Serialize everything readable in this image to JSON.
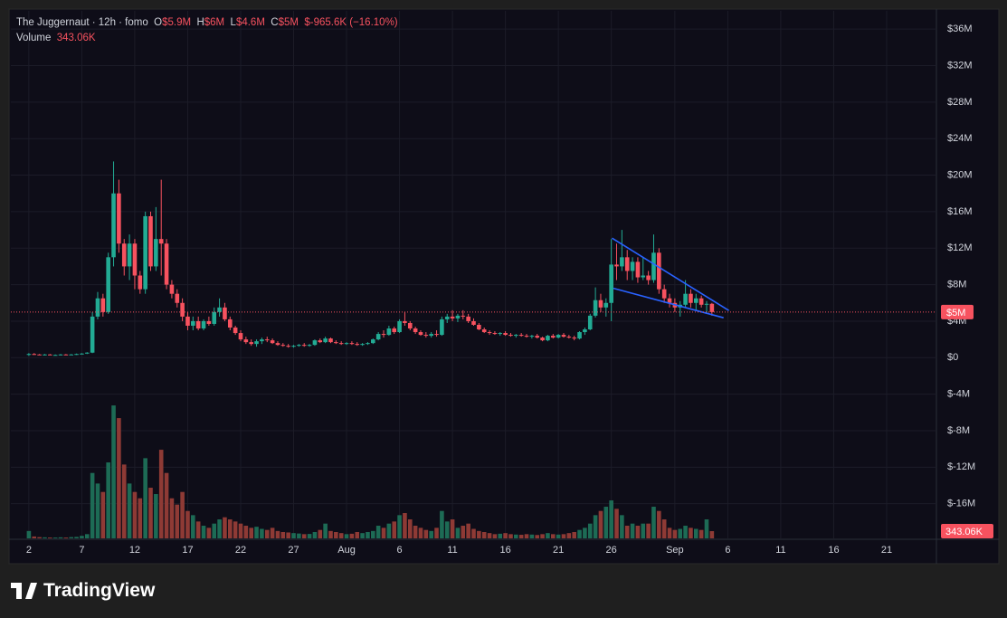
{
  "chart_data": {
    "type": "candlestick",
    "title": "The Juggernaut · 12h · fomo",
    "ohlc_legend": [
      {
        "label": "O",
        "value": "$5.9M"
      },
      {
        "label": "H",
        "value": "$6M"
      },
      {
        "label": "L",
        "value": "$4.6M"
      },
      {
        "label": "C",
        "value": "$5M"
      }
    ],
    "change": "$-965.6K (−16.10%)",
    "volume_title": "Volume",
    "volume_value": "343.06K",
    "last_price_label": "$5M",
    "brand": "TradingView",
    "up_color": "#22ab94",
    "down_color": "#f7525f",
    "volume_up_color": "#1d6b55",
    "volume_down_color": "#8e3a35",
    "x": [
      1,
      1.5,
      2,
      2.5,
      3,
      3.5,
      4,
      4.5,
      5,
      5.5,
      6,
      6.5,
      7,
      7.5,
      8,
      8.5,
      9,
      9.5,
      10,
      10.5,
      11,
      11.5,
      12,
      12.5,
      13,
      13.5,
      14,
      14.5,
      15,
      15.5,
      16,
      16.5,
      17,
      17.5,
      18,
      18.5,
      19,
      19.5,
      20,
      20.5,
      21,
      21.5,
      22,
      22.5,
      23,
      23.5,
      24,
      24.5,
      25,
      25.5,
      26,
      26.5,
      27,
      27.5,
      28,
      28.5,
      29,
      29.5,
      30,
      30.5,
      31,
      31.5,
      32,
      32.5,
      33,
      33.5,
      34,
      34.5,
      35,
      35.5,
      36,
      36.5,
      37,
      37.5,
      38,
      38.5,
      39,
      39.5,
      40,
      40.5,
      41,
      41.5,
      42,
      42.5,
      43,
      43.5,
      44,
      44.5,
      45,
      45.5,
      46,
      46.5,
      47,
      47.5,
      48,
      48.5,
      49,
      49.5,
      50,
      50.5,
      51,
      51.5,
      52,
      52.5,
      53,
      53.5,
      54,
      54.5,
      55,
      55.5,
      56,
      56.5,
      57,
      57.5,
      58,
      58.5,
      59,
      59.5,
      60,
      60.5,
      61,
      61.5,
      62,
      62.5,
      63,
      63.5,
      64,
      64.5,
      65,
      65.5
    ],
    "ohlc": [
      [
        0.3,
        0.5,
        0.2,
        0.4
      ],
      [
        0.4,
        0.5,
        0.3,
        0.35
      ],
      [
        0.35,
        0.4,
        0.3,
        0.3
      ],
      [
        0.3,
        0.4,
        0.25,
        0.35
      ],
      [
        0.35,
        0.4,
        0.3,
        0.3
      ],
      [
        0.3,
        0.35,
        0.25,
        0.3
      ],
      [
        0.3,
        0.4,
        0.25,
        0.35
      ],
      [
        0.35,
        0.4,
        0.3,
        0.3
      ],
      [
        0.3,
        0.4,
        0.3,
        0.35
      ],
      [
        0.35,
        0.45,
        0.3,
        0.4
      ],
      [
        0.4,
        0.5,
        0.35,
        0.45
      ],
      [
        0.45,
        0.6,
        0.4,
        0.55
      ],
      [
        0.55,
        5,
        0.5,
        4.5
      ],
      [
        4.5,
        7.2,
        4.2,
        6.5
      ],
      [
        6.5,
        7,
        4.5,
        5
      ],
      [
        5,
        11.5,
        4.8,
        11
      ],
      [
        11,
        21.5,
        10,
        18
      ],
      [
        18,
        19.5,
        11.5,
        12.5
      ],
      [
        12.5,
        13,
        9,
        10
      ],
      [
        10,
        13.5,
        8.5,
        12.5
      ],
      [
        12.5,
        13,
        7.5,
        9
      ],
      [
        9,
        9.5,
        7,
        7.5
      ],
      [
        7.5,
        16,
        7,
        15.5
      ],
      [
        15.5,
        16,
        9.5,
        10
      ],
      [
        10,
        16.5,
        9.5,
        13
      ],
      [
        13,
        19.5,
        9,
        12.5
      ],
      [
        12.5,
        13,
        7.5,
        8
      ],
      [
        8,
        8.5,
        6.5,
        7
      ],
      [
        7,
        7.5,
        5.5,
        6
      ],
      [
        6,
        6.5,
        4,
        4.5
      ],
      [
        4.5,
        5,
        3,
        3.5
      ],
      [
        3.5,
        4.5,
        3,
        4
      ],
      [
        4,
        4.5,
        3,
        3.2
      ],
      [
        3.2,
        4.2,
        3,
        4
      ],
      [
        4,
        4.5,
        3.5,
        3.7
      ],
      [
        3.7,
        5.5,
        3.5,
        5
      ],
      [
        5,
        6.5,
        4.5,
        5.5
      ],
      [
        5.5,
        6,
        4,
        4.2
      ],
      [
        4.2,
        4.5,
        3,
        3.3
      ],
      [
        3.3,
        3.5,
        2.5,
        2.7
      ],
      [
        2.7,
        3,
        1.8,
        2
      ],
      [
        2,
        2.3,
        1.5,
        1.7
      ],
      [
        1.7,
        2,
        1.3,
        1.5
      ],
      [
        1.5,
        2,
        1.2,
        1.8
      ],
      [
        1.8,
        2.2,
        1.5,
        2
      ],
      [
        2,
        2.3,
        1.7,
        1.9
      ],
      [
        1.9,
        2.1,
        1.5,
        1.6
      ],
      [
        1.6,
        1.8,
        1.3,
        1.4
      ],
      [
        1.4,
        1.6,
        1.2,
        1.3
      ],
      [
        1.3,
        1.5,
        1.1,
        1.2
      ],
      [
        1.2,
        1.4,
        1.1,
        1.3
      ],
      [
        1.3,
        1.5,
        1.2,
        1.4
      ],
      [
        1.4,
        1.6,
        1.2,
        1.3
      ],
      [
        1.3,
        1.5,
        1.2,
        1.4
      ],
      [
        1.4,
        2,
        1.3,
        1.9
      ],
      [
        1.9,
        2.1,
        1.6,
        1.7
      ],
      [
        1.7,
        2.3,
        1.6,
        2.1
      ],
      [
        2.1,
        2.2,
        1.6,
        1.7
      ],
      [
        1.7,
        1.9,
        1.5,
        1.6
      ],
      [
        1.6,
        1.8,
        1.4,
        1.5
      ],
      [
        1.5,
        1.7,
        1.4,
        1.6
      ],
      [
        1.6,
        1.8,
        1.4,
        1.5
      ],
      [
        1.5,
        1.7,
        1.3,
        1.4
      ],
      [
        1.4,
        1.6,
        1.3,
        1.5
      ],
      [
        1.5,
        1.7,
        1.4,
        1.6
      ],
      [
        1.6,
        2.1,
        1.5,
        2
      ],
      [
        2,
        2.8,
        1.9,
        2.6
      ],
      [
        2.6,
        3,
        2.2,
        2.5
      ],
      [
        2.5,
        3.5,
        2.4,
        3.2
      ],
      [
        3.2,
        3.4,
        2.6,
        2.8
      ],
      [
        2.8,
        4.2,
        2.7,
        4
      ],
      [
        4,
        5,
        3.5,
        3.8
      ],
      [
        3.8,
        4,
        3,
        3.2
      ],
      [
        3.2,
        3.4,
        2.6,
        2.8
      ],
      [
        2.8,
        3,
        2.4,
        2.5
      ],
      [
        2.5,
        2.8,
        2.2,
        2.4
      ],
      [
        2.4,
        2.8,
        2.2,
        2.6
      ],
      [
        2.6,
        3,
        2.3,
        2.5
      ],
      [
        2.5,
        4.5,
        2.4,
        4.2
      ],
      [
        4.2,
        4.8,
        3.8,
        4.5
      ],
      [
        4.5,
        5.2,
        4,
        4.3
      ],
      [
        4.3,
        4.8,
        3.9,
        4.6
      ],
      [
        4.6,
        5.2,
        4.2,
        4.5
      ],
      [
        4.5,
        4.8,
        3.8,
        4
      ],
      [
        4,
        4.3,
        3.5,
        3.6
      ],
      [
        3.6,
        3.8,
        3,
        3.1
      ],
      [
        3.1,
        3.3,
        2.7,
        2.8
      ],
      [
        2.8,
        3,
        2.5,
        2.7
      ],
      [
        2.7,
        2.9,
        2.5,
        2.6
      ],
      [
        2.6,
        2.8,
        2.4,
        2.7
      ],
      [
        2.7,
        2.9,
        2.4,
        2.5
      ],
      [
        2.5,
        2.7,
        2.3,
        2.4
      ],
      [
        2.4,
        2.6,
        2.2,
        2.5
      ],
      [
        2.5,
        2.7,
        2.3,
        2.4
      ],
      [
        2.4,
        2.6,
        2.2,
        2.3
      ],
      [
        2.3,
        2.5,
        2.1,
        2.4
      ],
      [
        2.4,
        2.6,
        2.1,
        2.2
      ],
      [
        2.2,
        2.3,
        1.8,
        1.9
      ],
      [
        1.9,
        2.5,
        1.8,
        2.4
      ],
      [
        2.4,
        2.6,
        2.1,
        2.2
      ],
      [
        2.2,
        2.6,
        2.1,
        2.5
      ],
      [
        2.5,
        2.7,
        2.2,
        2.3
      ],
      [
        2.3,
        2.5,
        2.1,
        2.2
      ],
      [
        2.2,
        2.4,
        1.9,
        2.1
      ],
      [
        2.1,
        2.9,
        2,
        2.8
      ],
      [
        2.8,
        3.3,
        2.5,
        3.1
      ],
      [
        3.1,
        4.8,
        3,
        4.6
      ],
      [
        4.6,
        7.7,
        4.4,
        6.3
      ],
      [
        6.3,
        7,
        5,
        5.5
      ],
      [
        5.5,
        6.5,
        4.5,
        6
      ],
      [
        6,
        13,
        4,
        10.2
      ],
      [
        10.2,
        12.5,
        8.5,
        10
      ],
      [
        10,
        14,
        9.5,
        11
      ],
      [
        11,
        11.8,
        8.5,
        9.5
      ],
      [
        9.5,
        11,
        8.5,
        10.5
      ],
      [
        10.5,
        11,
        8.2,
        8.8
      ],
      [
        8.8,
        11,
        8.5,
        9
      ],
      [
        9,
        9.5,
        8,
        8.5
      ],
      [
        8.5,
        13.5,
        8.2,
        11.5
      ],
      [
        11.5,
        12,
        7,
        7.5
      ],
      [
        7.5,
        8,
        6,
        6.5
      ],
      [
        6.5,
        7,
        5.5,
        6
      ],
      [
        6,
        6.5,
        5,
        5.5
      ],
      [
        5.5,
        6.2,
        4.5,
        5.8
      ],
      [
        5.8,
        8.5,
        5.5,
        7
      ],
      [
        7,
        7.5,
        5.5,
        6
      ],
      [
        6,
        7,
        5.2,
        6.5
      ],
      [
        6.5,
        6.8,
        5.5,
        5.8
      ],
      [
        5.8,
        6.2,
        4.8,
        5.9
      ],
      [
        5.9,
        6,
        4.6,
        5
      ]
    ],
    "volume": [
      350,
      90,
      60,
      50,
      40,
      40,
      50,
      40,
      60,
      70,
      120,
      200,
      3100,
      2600,
      2200,
      3600,
      6300,
      5700,
      3500,
      2600,
      2200,
      1900,
      3800,
      2400,
      2100,
      4200,
      3100,
      1900,
      1600,
      2200,
      1300,
      1100,
      800,
      600,
      500,
      700,
      900,
      1000,
      900,
      800,
      700,
      600,
      500,
      550,
      450,
      400,
      500,
      350,
      300,
      280,
      250,
      230,
      200,
      210,
      300,
      400,
      700,
      350,
      300,
      250,
      200,
      220,
      300,
      250,
      300,
      350,
      600,
      500,
      700,
      800,
      1100,
      1200,
      900,
      600,
      500,
      400,
      350,
      500,
      1300,
      800,
      900,
      500,
      600,
      700,
      450,
      350,
      300,
      250,
      200,
      220,
      250,
      200,
      180,
      170,
      200,
      180,
      160,
      200,
      250,
      200,
      180,
      200,
      250,
      300,
      400,
      500,
      700,
      1100,
      1300,
      1500,
      1800,
      1400,
      1100,
      600,
      700,
      600,
      700,
      700,
      1500,
      1300,
      900,
      500,
      400,
      450,
      600,
      500,
      450,
      400,
      900,
      343.06
    ],
    "xlim": [
      -0.7,
      86.7
    ],
    "xticks": [
      {
        "value": 1,
        "label": "2"
      },
      {
        "value": 6,
        "label": "7"
      },
      {
        "value": 11,
        "label": "12"
      },
      {
        "value": 16,
        "label": "17"
      },
      {
        "value": 21,
        "label": "22"
      },
      {
        "value": 26,
        "label": "27"
      },
      {
        "value": 31,
        "label": "Aug"
      },
      {
        "value": 36,
        "label": "6"
      },
      {
        "value": 41,
        "label": "11"
      },
      {
        "value": 46,
        "label": "16"
      },
      {
        "value": 51,
        "label": "21"
      },
      {
        "value": 56,
        "label": "26"
      },
      {
        "value": 62,
        "label": "Sep"
      },
      {
        "value": 67,
        "label": "6"
      },
      {
        "value": 72,
        "label": "11"
      },
      {
        "value": 77,
        "label": "16"
      },
      {
        "value": 82,
        "label": "21"
      },
      {
        "value": 87,
        "label": "26"
      }
    ],
    "ylim": [
      -19.8,
      38
    ],
    "yticks": [
      {
        "value": 36,
        "label": "$36M"
      },
      {
        "value": 32,
        "label": "$32M"
      },
      {
        "value": 28,
        "label": "$28M"
      },
      {
        "value": 24,
        "label": "$24M"
      },
      {
        "value": 20,
        "label": "$20M"
      },
      {
        "value": 16,
        "label": "$16M"
      },
      {
        "value": 12,
        "label": "$12M"
      },
      {
        "value": 8,
        "label": "$8M"
      },
      {
        "value": 4,
        "label": "$4M"
      },
      {
        "value": 0,
        "label": "$0"
      },
      {
        "value": -4,
        "label": "$-4M"
      },
      {
        "value": -8,
        "label": "$-8M"
      },
      {
        "value": -12,
        "label": "$-12M"
      },
      {
        "value": -16,
        "label": "$-16M"
      }
    ],
    "volume_lim": [
      0,
      25000
    ],
    "grid": true,
    "trendlines": [
      {
        "color": "#2962ff",
        "x": [
          56.07,
          67.1
        ],
        "y": [
          13.1,
          5.16
        ]
      },
      {
        "color": "#2962ff",
        "x": [
          56.2,
          66.6
        ],
        "y": [
          7.6,
          4.37
        ]
      }
    ]
  }
}
